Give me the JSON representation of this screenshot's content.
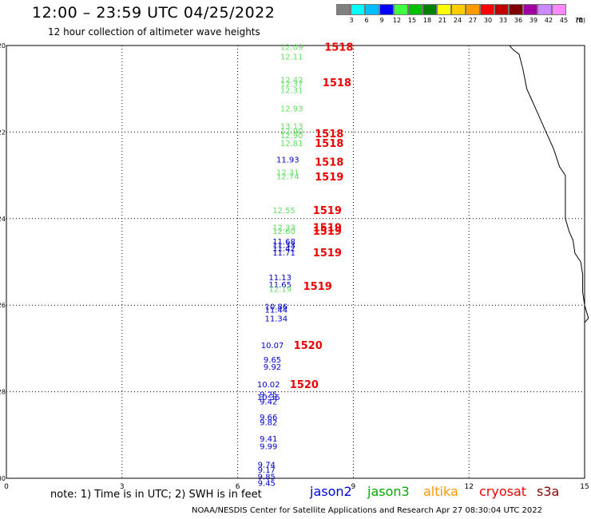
{
  "header": {
    "title": "12:00 – 23:59 UTC 04/25/2022",
    "subtitle": "12 hour collection of altimeter wave heights"
  },
  "colorbar": {
    "colors": [
      "#808080",
      "#00ffff",
      "#00bfff",
      "#0000ff",
      "#40ff40",
      "#00c000",
      "#008000",
      "#ffff00",
      "#ffcc00",
      "#ff9900",
      "#ff0000",
      "#c00000",
      "#800000",
      "#a000a0",
      "#cc88ff",
      "#ff88ff",
      "#000000"
    ],
    "labels": [
      "3",
      "6",
      "9",
      "12",
      "15",
      "18",
      "21",
      "24",
      "27",
      "30",
      "33",
      "36",
      "39",
      "42",
      "45",
      "70",
      "(ft)"
    ]
  },
  "axes": {
    "x_ticks": [
      "0",
      "3",
      "6",
      "9",
      "12",
      "15"
    ],
    "y_ticks": [
      "-20",
      "-22",
      "-24",
      "-26",
      "-28",
      "-30"
    ]
  },
  "chart_data": {
    "type": "scatter",
    "x_range": [
      0,
      15
    ],
    "y_range": [
      -30,
      -20
    ],
    "grid": true,
    "coastline": [
      [
        13.05,
        -20.0
      ],
      [
        13.15,
        -20.1
      ],
      [
        13.3,
        -20.2
      ],
      [
        13.4,
        -20.55
      ],
      [
        13.5,
        -21.0
      ],
      [
        13.6,
        -21.2
      ],
      [
        13.8,
        -21.6
      ],
      [
        14.0,
        -22.0
      ],
      [
        14.1,
        -22.2
      ],
      [
        14.2,
        -22.4
      ],
      [
        14.35,
        -22.8
      ],
      [
        14.5,
        -23.0
      ],
      [
        14.5,
        -23.5
      ],
      [
        14.5,
        -24.0
      ],
      [
        14.6,
        -24.3
      ],
      [
        14.7,
        -24.5
      ],
      [
        14.75,
        -24.8
      ],
      [
        14.9,
        -25.0
      ],
      [
        14.95,
        -25.3
      ],
      [
        14.95,
        -25.7
      ],
      [
        15.0,
        -26.0
      ],
      [
        15.1,
        -26.3
      ],
      [
        15.0,
        -26.4
      ]
    ],
    "measurements": [
      {
        "x": 7.4,
        "y": -20.03,
        "label": "12.09",
        "color": "#66dd66"
      },
      {
        "x": 7.4,
        "y": -20.25,
        "label": "12.11",
        "color": "#66dd66"
      },
      {
        "x": 7.4,
        "y": -20.78,
        "label": "12.42",
        "color": "#66dd66"
      },
      {
        "x": 7.4,
        "y": -20.88,
        "label": "12.37",
        "color": "#66dd66"
      },
      {
        "x": 7.4,
        "y": -21.02,
        "label": "12.31",
        "color": "#66dd66"
      },
      {
        "x": 7.4,
        "y": -21.45,
        "label": "12.93",
        "color": "#66dd66"
      },
      {
        "x": 7.4,
        "y": -21.85,
        "label": "13.13",
        "color": "#66dd66"
      },
      {
        "x": 7.4,
        "y": -21.97,
        "label": "12.90",
        "color": "#66dd66"
      },
      {
        "x": 7.4,
        "y": -22.07,
        "label": "12.90",
        "color": "#66dd66"
      },
      {
        "x": 7.4,
        "y": -22.25,
        "label": "12.81",
        "color": "#66dd66"
      },
      {
        "x": 7.3,
        "y": -22.63,
        "label": "11.93",
        "color": "#0000cc"
      },
      {
        "x": 7.3,
        "y": -22.92,
        "label": "12.31",
        "color": "#66dd66"
      },
      {
        "x": 7.3,
        "y": -23.02,
        "label": "12.74",
        "color": "#66dd66"
      },
      {
        "x": 7.2,
        "y": -23.8,
        "label": "12.55",
        "color": "#66dd66"
      },
      {
        "x": 7.2,
        "y": -24.2,
        "label": "12.33",
        "color": "#66dd66"
      },
      {
        "x": 7.2,
        "y": -24.28,
        "label": "12.60",
        "color": "#66dd66"
      },
      {
        "x": 7.2,
        "y": -24.52,
        "label": "11.68",
        "color": "#0000cc"
      },
      {
        "x": 7.2,
        "y": -24.6,
        "label": "11.33",
        "color": "#0000cc"
      },
      {
        "x": 7.2,
        "y": -24.68,
        "label": "11.42",
        "color": "#0000cc"
      },
      {
        "x": 7.2,
        "y": -24.78,
        "label": "11.71",
        "color": "#0000cc"
      },
      {
        "x": 7.1,
        "y": -25.35,
        "label": "11.13",
        "color": "#0000cc"
      },
      {
        "x": 7.1,
        "y": -25.52,
        "label": "11.65",
        "color": "#0000cc"
      },
      {
        "x": 7.1,
        "y": -25.62,
        "label": "12.19",
        "color": "#66dd66"
      },
      {
        "x": 7.0,
        "y": -26.02,
        "label": "10.86",
        "color": "#0000cc"
      },
      {
        "x": 7.0,
        "y": -26.1,
        "label": "11.44",
        "color": "#0000cc"
      },
      {
        "x": 7.0,
        "y": -26.3,
        "label": "11.34",
        "color": "#0000cc"
      },
      {
        "x": 6.9,
        "y": -26.92,
        "label": "10.07",
        "color": "#0000cc"
      },
      {
        "x": 6.9,
        "y": -27.25,
        "label": "9.65",
        "color": "#0000cc"
      },
      {
        "x": 6.9,
        "y": -27.42,
        "label": "9.92",
        "color": "#0000cc"
      },
      {
        "x": 6.8,
        "y": -27.82,
        "label": "10.02",
        "color": "#0000cc"
      },
      {
        "x": 6.8,
        "y": -28.05,
        "label": "9.25",
        "color": "#0000cc"
      },
      {
        "x": 6.8,
        "y": -28.12,
        "label": "10.36",
        "color": "#0000cc"
      },
      {
        "x": 6.8,
        "y": -28.22,
        "label": "9.42",
        "color": "#0000cc"
      },
      {
        "x": 6.8,
        "y": -28.58,
        "label": "9.66",
        "color": "#0000cc"
      },
      {
        "x": 6.8,
        "y": -28.7,
        "label": "9.82",
        "color": "#0000cc"
      },
      {
        "x": 6.8,
        "y": -29.08,
        "label": "9.41",
        "color": "#0000cc"
      },
      {
        "x": 6.8,
        "y": -29.25,
        "label": "9.99",
        "color": "#0000cc"
      },
      {
        "x": 6.75,
        "y": -29.68,
        "label": "9.74",
        "color": "#0000cc"
      },
      {
        "x": 6.75,
        "y": -29.8,
        "label": "9.17",
        "color": "#0000cc"
      },
      {
        "x": 6.75,
        "y": -29.95,
        "label": "9.85",
        "color": "#0000cc"
      },
      {
        "x": 6.75,
        "y": -30.1,
        "label": "9.45",
        "color": "#0000cc"
      }
    ],
    "passes": [
      {
        "x": 8.25,
        "y": -20.03,
        "label": "1518"
      },
      {
        "x": 8.2,
        "y": -20.85,
        "label": "1518"
      },
      {
        "x": 8.0,
        "y": -22.03,
        "label": "1518"
      },
      {
        "x": 8.0,
        "y": -22.25,
        "label": "1518"
      },
      {
        "x": 8.0,
        "y": -22.68,
        "label": "1518"
      },
      {
        "x": 8.0,
        "y": -23.03,
        "label": "1519"
      },
      {
        "x": 7.95,
        "y": -23.8,
        "label": "1519"
      },
      {
        "x": 7.95,
        "y": -24.2,
        "label": "1519"
      },
      {
        "x": 7.95,
        "y": -24.28,
        "label": "1519"
      },
      {
        "x": 7.95,
        "y": -24.78,
        "label": "1519"
      },
      {
        "x": 7.7,
        "y": -25.55,
        "label": "1519"
      },
      {
        "x": 7.45,
        "y": -26.92,
        "label": "1520"
      },
      {
        "x": 7.35,
        "y": -27.82,
        "label": "1520"
      }
    ]
  },
  "legend": {
    "items": [
      {
        "name": "jason2",
        "color": "#0000dd"
      },
      {
        "name": "jason3",
        "color": "#00aa00"
      },
      {
        "name": "altika",
        "color": "#ff9900"
      },
      {
        "name": "cryosat",
        "color": "#ee0000"
      },
      {
        "name": "s3a",
        "color": "#880000"
      }
    ]
  },
  "note": "note:  1) Time is in UTC;  2) SWH is in feet",
  "footer": "NOAA/NESDIS Center for Satellite Applications and Research     Apr 27 08:30:04 UTC 2022"
}
